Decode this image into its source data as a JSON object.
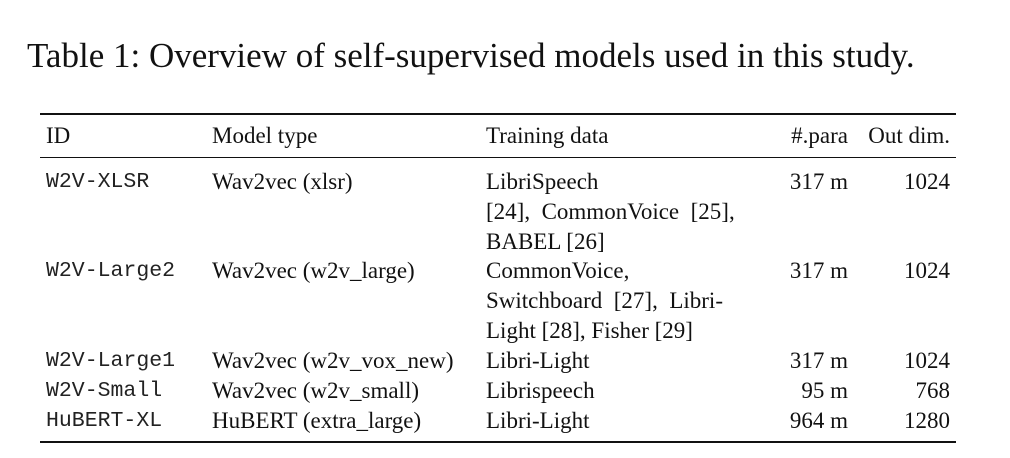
{
  "caption": "Table 1: Overview of self-supervised models used in this study.",
  "headers": {
    "id": "ID",
    "model": "Model type",
    "training": "Training data",
    "para": "#.para",
    "dim": "Out dim."
  },
  "rows": [
    {
      "id": "W2V-XLSR",
      "model": "Wav2vec (xlsr)",
      "training": [
        "LibriSpeech",
        "[24],  CommonVoice  [25],",
        "BABEL [26]"
      ],
      "para": "317 m",
      "dim": "1024"
    },
    {
      "id": "W2V-Large2",
      "model": "Wav2vec (w2v_large)",
      "training": [
        "CommonVoice,",
        "Switchboard  [27],  Libri-",
        "Light [28], Fisher [29]"
      ],
      "para": "317 m",
      "dim": "1024"
    },
    {
      "id": "W2V-Large1",
      "model": "Wav2vec (w2v_vox_new)",
      "training": [
        "Libri-Light"
      ],
      "para": "317 m",
      "dim": "1024"
    },
    {
      "id": "W2V-Small",
      "model": "Wav2vec (w2v_small)",
      "training": [
        "Librispeech"
      ],
      "para": "95 m",
      "dim": "768"
    },
    {
      "id": "HuBERT-XL",
      "model": "HuBERT (extra_large)",
      "training": [
        "Libri-Light"
      ],
      "para": "964 m",
      "dim": "1280"
    }
  ]
}
